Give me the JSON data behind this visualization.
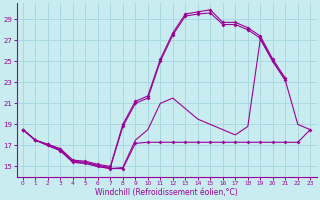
{
  "xlabel": "Windchill (Refroidissement éolien,°C)",
  "background_color": "#c8ecf0",
  "grid_color": "#aad8e0",
  "line_color": "#990099",
  "xlim": [
    -0.5,
    23.5
  ],
  "ylim": [
    14.0,
    30.5
  ],
  "yticks": [
    15,
    17,
    19,
    21,
    23,
    25,
    27,
    29
  ],
  "xticks": [
    0,
    1,
    2,
    3,
    4,
    5,
    6,
    7,
    8,
    9,
    10,
    11,
    12,
    13,
    14,
    15,
    16,
    17,
    18,
    19,
    20,
    21,
    22,
    23
  ],
  "series": [
    {
      "x": [
        0,
        1,
        2,
        3,
        4,
        5,
        6,
        7,
        8,
        9,
        10,
        11,
        12,
        13,
        14,
        15,
        16,
        17,
        18,
        19,
        20,
        21,
        22,
        23
      ],
      "y": [
        18.5,
        17.5,
        17.0,
        16.5,
        15.4,
        15.3,
        15.0,
        14.8,
        14.8,
        17.2,
        17.3,
        17.3,
        17.3,
        17.3,
        17.3,
        17.3,
        17.3,
        17.3,
        17.3,
        17.3,
        17.3,
        17.3,
        17.3,
        18.5
      ],
      "marker": true
    },
    {
      "x": [
        0,
        1,
        2,
        3,
        4,
        5,
        6,
        7,
        8,
        9,
        10,
        11,
        12,
        13,
        14,
        15,
        16,
        17,
        18,
        19,
        20,
        21,
        22,
        23
      ],
      "y": [
        18.5,
        17.5,
        17.0,
        16.5,
        15.4,
        15.3,
        15.0,
        14.8,
        14.9,
        17.5,
        18.5,
        21.0,
        21.5,
        20.5,
        19.5,
        19.0,
        18.5,
        18.0,
        18.8,
        27.1,
        25.0,
        23.2,
        19.0,
        18.5
      ],
      "marker": false
    },
    {
      "x": [
        0,
        1,
        2,
        3,
        4,
        5,
        6,
        7,
        8,
        9,
        10,
        11,
        12,
        13,
        14,
        15,
        16,
        17,
        18,
        19,
        20,
        21,
        22,
        23
      ],
      "y": [
        18.5,
        17.5,
        17.1,
        16.6,
        15.5,
        15.4,
        15.1,
        14.9,
        18.8,
        21.0,
        21.5,
        25.0,
        27.5,
        29.3,
        29.5,
        29.6,
        28.5,
        28.5,
        28.0,
        27.2,
        25.0,
        23.2,
        null,
        null
      ],
      "marker": true
    },
    {
      "x": [
        0,
        1,
        2,
        3,
        4,
        5,
        6,
        7,
        8,
        9,
        10,
        11,
        12,
        13,
        14,
        15,
        16,
        17,
        18,
        19,
        20,
        21,
        22,
        23
      ],
      "y": [
        18.5,
        17.5,
        17.1,
        16.7,
        15.6,
        15.5,
        15.2,
        15.0,
        19.0,
        21.2,
        21.7,
        25.2,
        27.7,
        29.5,
        29.7,
        29.9,
        28.7,
        28.7,
        28.2,
        27.4,
        25.2,
        23.4,
        null,
        null
      ],
      "marker": true
    }
  ]
}
